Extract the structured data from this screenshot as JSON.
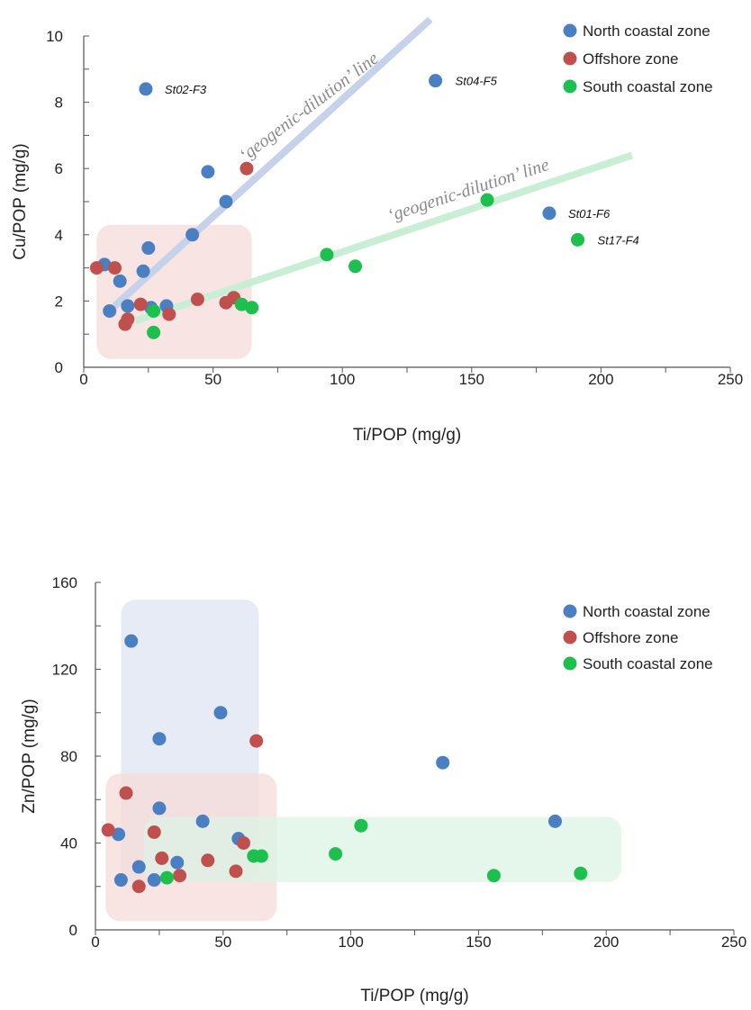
{
  "chart_data": [
    {
      "type": "scatter",
      "xlabel": "Ti/POP (mg/g)",
      "ylabel": "Cu/POP (mg/g)",
      "xlim": [
        0,
        250
      ],
      "ylim": [
        0,
        10
      ],
      "xticks": [
        0,
        50,
        100,
        150,
        200,
        250
      ],
      "yticks": [
        0,
        2,
        4,
        6,
        8,
        10
      ],
      "grid": false,
      "legend_position": "top-right",
      "series": [
        {
          "name": "North coastal zone",
          "color": "#4a7fc1",
          "points": [
            [
              24,
              8.4
            ],
            [
              136,
              8.65
            ],
            [
              48,
              5.9
            ],
            [
              55,
              5.0
            ],
            [
              42,
              4.0
            ],
            [
              25,
              3.6
            ],
            [
              8,
              3.1
            ],
            [
              23,
              2.9
            ],
            [
              14,
              2.6
            ],
            [
              10,
              1.7
            ],
            [
              17,
              1.85
            ],
            [
              26,
              1.8
            ],
            [
              32,
              1.85
            ],
            [
              180,
              4.65
            ]
          ]
        },
        {
          "name": "Offshore zone",
          "color": "#c0504d",
          "points": [
            [
              5,
              3.0
            ],
            [
              12,
              3.0
            ],
            [
              63,
              6.0
            ],
            [
              22,
              1.9
            ],
            [
              17,
              1.45
            ],
            [
              16,
              1.3
            ],
            [
              33,
              1.6
            ],
            [
              44,
              2.05
            ],
            [
              58,
              2.1
            ],
            [
              55,
              1.95
            ]
          ]
        },
        {
          "name": "South coastal zone",
          "color": "#1dbf4e",
          "points": [
            [
              27,
              1.7
            ],
            [
              27,
              1.05
            ],
            [
              61,
              1.9
            ],
            [
              65,
              1.8
            ],
            [
              94,
              3.4
            ],
            [
              105,
              3.05
            ],
            [
              156,
              5.05
            ],
            [
              191,
              3.85
            ]
          ]
        }
      ],
      "annotations": [
        {
          "text": "St02-F3",
          "x": 24,
          "y": 8.4
        },
        {
          "text": "St04-F5",
          "x": 136,
          "y": 8.65
        },
        {
          "text": "St01-F6",
          "x": 180,
          "y": 4.65
        },
        {
          "text": "St17-F4",
          "x": 191,
          "y": 3.85
        },
        {
          "text": "‘geogenic-dilution’ line"
        },
        {
          "text": "‘geogenic-dilution’ line"
        }
      ],
      "trend_lines": [
        {
          "color": "#c5d2ea",
          "from": [
            12,
            1.85
          ],
          "to": [
            134,
            10.5
          ]
        },
        {
          "color": "#c9eed6",
          "from": [
            20,
            1.4
          ],
          "to": [
            212,
            6.4
          ]
        }
      ],
      "regions": [
        {
          "color": "#f5dcd9",
          "x": [
            5,
            65
          ],
          "y": [
            0.25,
            4.3
          ]
        }
      ]
    },
    {
      "type": "scatter",
      "xlabel": "Ti/POP (mg/g)",
      "ylabel": "Zn/POP (mg/g)",
      "xlim": [
        0,
        250
      ],
      "ylim": [
        0,
        160
      ],
      "xticks": [
        0,
        50,
        100,
        150,
        200,
        250
      ],
      "yticks": [
        0,
        40,
        80,
        120,
        160
      ],
      "grid": false,
      "legend_position": "top-right",
      "series": [
        {
          "name": "North coastal zone",
          "color": "#4a7fc1",
          "points": [
            [
              14,
              133
            ],
            [
              49,
              100
            ],
            [
              25,
              88
            ],
            [
              136,
              77
            ],
            [
              180,
              50
            ],
            [
              25,
              56
            ],
            [
              42,
              50
            ],
            [
              9,
              44
            ],
            [
              56,
              42
            ],
            [
              17,
              29
            ],
            [
              32,
              31
            ],
            [
              10,
              23
            ],
            [
              23,
              23
            ]
          ]
        },
        {
          "name": "Offshore zone",
          "color": "#c0504d",
          "points": [
            [
              63,
              87
            ],
            [
              12,
              63
            ],
            [
              5,
              46
            ],
            [
              23,
              45
            ],
            [
              58,
              40
            ],
            [
              26,
              33
            ],
            [
              44,
              32
            ],
            [
              55,
              27
            ],
            [
              33,
              25
            ],
            [
              17,
              20
            ]
          ]
        },
        {
          "name": "South coastal zone",
          "color": "#1dbf4e",
          "points": [
            [
              104,
              48
            ],
            [
              62,
              34
            ],
            [
              65,
              34
            ],
            [
              94,
              35
            ],
            [
              28,
              24
            ],
            [
              156,
              25
            ],
            [
              190,
              26
            ]
          ]
        }
      ],
      "regions": [
        {
          "color": "#dde4f2",
          "x": [
            10,
            64
          ],
          "y": [
            22,
            152
          ]
        },
        {
          "color": "#f5dcd9",
          "x": [
            4,
            71
          ],
          "y": [
            4,
            72
          ]
        },
        {
          "color": "#dcf3e4",
          "x": [
            19,
            206
          ],
          "y": [
            22,
            52
          ]
        }
      ]
    }
  ]
}
